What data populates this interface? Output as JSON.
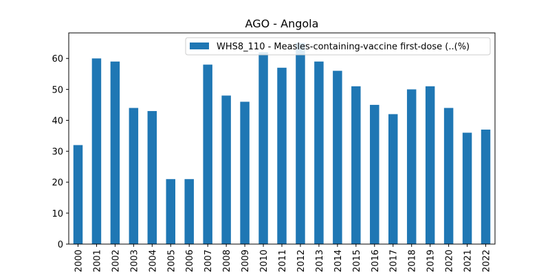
{
  "chart_data": {
    "type": "bar",
    "title": "AGO - Angola",
    "xlabel": "",
    "ylabel": "",
    "ylim": [
      0,
      68.25
    ],
    "yticks": [
      0,
      10,
      20,
      30,
      40,
      50,
      60
    ],
    "grid": false,
    "legend_placement": "top-right",
    "categories": [
      "2000",
      "2001",
      "2002",
      "2003",
      "2004",
      "2005",
      "2006",
      "2007",
      "2008",
      "2009",
      "2010",
      "2011",
      "2012",
      "2013",
      "2014",
      "2015",
      "2016",
      "2017",
      "2018",
      "2019",
      "2020",
      "2021",
      "2022"
    ],
    "series": [
      {
        "name": "WHS8_110 - Measles-containing-vaccine first-dose (..(%)",
        "color": "#1f77b4",
        "values": [
          32,
          60,
          59,
          44,
          43,
          21,
          21,
          58,
          48,
          46,
          62,
          57,
          65,
          59,
          56,
          51,
          45,
          42,
          50,
          51,
          44,
          36,
          37
        ]
      }
    ]
  }
}
